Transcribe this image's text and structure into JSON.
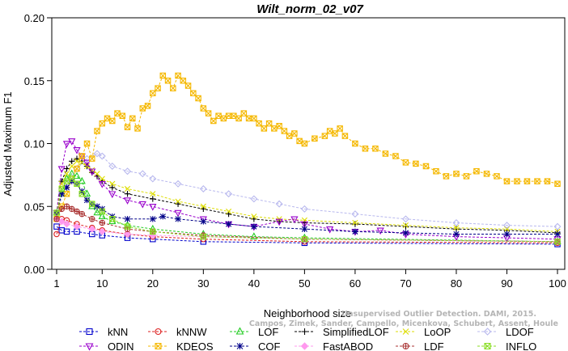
{
  "chart_data": {
    "type": "line",
    "title": "Wilt_norm_02_v07",
    "xlabel": "Neighborhood size",
    "ylabel": "Adjusted Maximum F1",
    "xlim": [
      1,
      100
    ],
    "ylim": [
      0.0,
      0.2
    ],
    "x_ticks": [
      "1",
      "10",
      "20",
      "30",
      "40",
      "50",
      "60",
      "70",
      "80",
      "90",
      "100"
    ],
    "y_ticks": [
      "0.00",
      "0.05",
      "0.10",
      "0.15",
      "0.20"
    ],
    "grid": false,
    "legend_position": "bottom",
    "watermark": [
      "Campos, Zimek, Sander, Campello, Micenkova, Schubert, Assent, Houle",
      "Unsupervised Outlier Detection. DAMI, 2015."
    ],
    "series": [
      {
        "name": "kNN",
        "color": "#0000cc",
        "marker": "square",
        "points": [
          [
            1,
            0.034
          ],
          [
            2,
            0.031
          ],
          [
            3,
            0.03
          ],
          [
            5,
            0.03
          ],
          [
            8,
            0.028
          ],
          [
            10,
            0.027
          ],
          [
            15,
            0.025
          ],
          [
            20,
            0.024
          ],
          [
            30,
            0.022
          ],
          [
            50,
            0.021
          ],
          [
            100,
            0.02
          ]
        ]
      },
      {
        "name": "kNNW",
        "color": "#dd2222",
        "marker": "circle",
        "points": [
          [
            1,
            0.028
          ],
          [
            2,
            0.04
          ],
          [
            3,
            0.039
          ],
          [
            5,
            0.036
          ],
          [
            8,
            0.033
          ],
          [
            10,
            0.031
          ],
          [
            15,
            0.028
          ],
          [
            20,
            0.026
          ],
          [
            30,
            0.024
          ],
          [
            50,
            0.022
          ],
          [
            100,
            0.021
          ]
        ]
      },
      {
        "name": "LOF",
        "color": "#22cc22",
        "marker": "triangle-up",
        "points": [
          [
            1,
            0.045
          ],
          [
            2,
            0.06
          ],
          [
            3,
            0.072
          ],
          [
            4,
            0.076
          ],
          [
            5,
            0.074
          ],
          [
            6,
            0.07
          ],
          [
            7,
            0.06
          ],
          [
            8,
            0.05
          ],
          [
            9,
            0.045
          ],
          [
            10,
            0.042
          ],
          [
            12,
            0.038
          ],
          [
            15,
            0.035
          ],
          [
            20,
            0.032
          ],
          [
            30,
            0.028
          ],
          [
            40,
            0.026
          ],
          [
            50,
            0.025
          ],
          [
            100,
            0.022
          ]
        ]
      },
      {
        "name": "SimplifiedLOF",
        "color": "#000000",
        "marker": "plus",
        "points": [
          [
            1,
            0.045
          ],
          [
            2,
            0.07
          ],
          [
            3,
            0.08
          ],
          [
            4,
            0.086
          ],
          [
            5,
            0.088
          ],
          [
            6,
            0.086
          ],
          [
            7,
            0.082
          ],
          [
            8,
            0.077
          ],
          [
            9,
            0.074
          ],
          [
            10,
            0.07
          ],
          [
            12,
            0.065
          ],
          [
            15,
            0.06
          ],
          [
            20,
            0.056
          ],
          [
            25,
            0.052
          ],
          [
            30,
            0.048
          ],
          [
            35,
            0.044
          ],
          [
            40,
            0.04
          ],
          [
            45,
            0.038
          ],
          [
            50,
            0.037
          ],
          [
            60,
            0.036
          ],
          [
            70,
            0.034
          ],
          [
            80,
            0.032
          ],
          [
            90,
            0.031
          ],
          [
            100,
            0.029
          ]
        ]
      },
      {
        "name": "LoOP",
        "color": "#dddd00",
        "marker": "x",
        "points": [
          [
            1,
            0.045
          ],
          [
            2,
            0.068
          ],
          [
            3,
            0.076
          ],
          [
            4,
            0.082
          ],
          [
            5,
            0.086
          ],
          [
            6,
            0.085
          ],
          [
            7,
            0.082
          ],
          [
            8,
            0.079
          ],
          [
            9,
            0.076
          ],
          [
            10,
            0.072
          ],
          [
            12,
            0.068
          ],
          [
            15,
            0.064
          ],
          [
            20,
            0.06
          ],
          [
            25,
            0.054
          ],
          [
            30,
            0.05
          ],
          [
            35,
            0.046
          ],
          [
            40,
            0.042
          ],
          [
            45,
            0.04
          ],
          [
            50,
            0.039
          ],
          [
            60,
            0.037
          ],
          [
            70,
            0.035
          ],
          [
            80,
            0.033
          ],
          [
            90,
            0.032
          ],
          [
            100,
            0.03
          ]
        ]
      },
      {
        "name": "LDOF",
        "color": "#b8b8ee",
        "marker": "diamond",
        "points": [
          [
            1,
            0.045
          ],
          [
            3,
            0.068
          ],
          [
            5,
            0.08
          ],
          [
            7,
            0.088
          ],
          [
            9,
            0.092
          ],
          [
            10,
            0.09
          ],
          [
            12,
            0.082
          ],
          [
            15,
            0.078
          ],
          [
            18,
            0.076
          ],
          [
            20,
            0.072
          ],
          [
            25,
            0.068
          ],
          [
            30,
            0.064
          ],
          [
            35,
            0.06
          ],
          [
            40,
            0.056
          ],
          [
            45,
            0.052
          ],
          [
            50,
            0.048
          ],
          [
            60,
            0.044
          ],
          [
            70,
            0.04
          ],
          [
            80,
            0.037
          ],
          [
            90,
            0.035
          ],
          [
            100,
            0.034
          ]
        ]
      },
      {
        "name": "ODIN",
        "color": "#9900cc",
        "marker": "triangle-down",
        "points": [
          [
            1,
            0.045
          ],
          [
            2,
            0.08
          ],
          [
            3,
            0.1
          ],
          [
            4,
            0.102
          ],
          [
            5,
            0.095
          ],
          [
            6,
            0.09
          ],
          [
            7,
            0.085
          ],
          [
            8,
            0.078
          ],
          [
            10,
            0.068
          ],
          [
            12,
            0.06
          ],
          [
            15,
            0.055
          ],
          [
            18,
            0.052
          ],
          [
            20,
            0.05
          ],
          [
            25,
            0.045
          ],
          [
            30,
            0.04
          ],
          [
            35,
            0.036
          ],
          [
            40,
            0.034
          ],
          [
            45,
            0.038
          ],
          [
            48,
            0.04
          ],
          [
            50,
            0.036
          ],
          [
            55,
            0.032
          ],
          [
            60,
            0.03
          ],
          [
            65,
            0.031
          ],
          [
            70,
            0.028
          ],
          [
            80,
            0.026
          ],
          [
            90,
            0.025
          ],
          [
            100,
            0.024
          ]
        ]
      },
      {
        "name": "KDEOS",
        "color": "#f5b800",
        "marker": "square-x",
        "points": [
          [
            1,
            0.04
          ],
          [
            2,
            0.05
          ],
          [
            3,
            0.06
          ],
          [
            4,
            0.072
          ],
          [
            5,
            0.08
          ],
          [
            6,
            0.09
          ],
          [
            7,
            0.1
          ],
          [
            8,
            0.088
          ],
          [
            9,
            0.11
          ],
          [
            10,
            0.116
          ],
          [
            11,
            0.12
          ],
          [
            12,
            0.118
          ],
          [
            13,
            0.124
          ],
          [
            14,
            0.122
          ],
          [
            15,
            0.113
          ],
          [
            16,
            0.12
          ],
          [
            17,
            0.112
          ],
          [
            18,
            0.128
          ],
          [
            19,
            0.13
          ],
          [
            20,
            0.14
          ],
          [
            21,
            0.144
          ],
          [
            22,
            0.154
          ],
          [
            23,
            0.15
          ],
          [
            24,
            0.144
          ],
          [
            25,
            0.154
          ],
          [
            26,
            0.15
          ],
          [
            27,
            0.146
          ],
          [
            28,
            0.14
          ],
          [
            29,
            0.136
          ],
          [
            30,
            0.128
          ],
          [
            31,
            0.124
          ],
          [
            32,
            0.118
          ],
          [
            33,
            0.122
          ],
          [
            34,
            0.12
          ],
          [
            35,
            0.122
          ],
          [
            36,
            0.122
          ],
          [
            37,
            0.12
          ],
          [
            38,
            0.124
          ],
          [
            39,
            0.12
          ],
          [
            40,
            0.12
          ],
          [
            41,
            0.116
          ],
          [
            42,
            0.112
          ],
          [
            43,
            0.116
          ],
          [
            44,
            0.112
          ],
          [
            45,
            0.114
          ],
          [
            46,
            0.11
          ],
          [
            47,
            0.106
          ],
          [
            48,
            0.108
          ],
          [
            49,
            0.102
          ],
          [
            50,
            0.1
          ],
          [
            52,
            0.104
          ],
          [
            54,
            0.106
          ],
          [
            55,
            0.11
          ],
          [
            56,
            0.108
          ],
          [
            57,
            0.112
          ],
          [
            58,
            0.106
          ],
          [
            60,
            0.1
          ],
          [
            62,
            0.096
          ],
          [
            64,
            0.096
          ],
          [
            66,
            0.092
          ],
          [
            68,
            0.09
          ],
          [
            70,
            0.085
          ],
          [
            72,
            0.084
          ],
          [
            74,
            0.082
          ],
          [
            76,
            0.078
          ],
          [
            78,
            0.074
          ],
          [
            80,
            0.076
          ],
          [
            82,
            0.074
          ],
          [
            84,
            0.078
          ],
          [
            86,
            0.076
          ],
          [
            88,
            0.074
          ],
          [
            90,
            0.07
          ],
          [
            92,
            0.07
          ],
          [
            94,
            0.07
          ],
          [
            96,
            0.07
          ],
          [
            98,
            0.07
          ],
          [
            100,
            0.068
          ]
        ]
      },
      {
        "name": "COF",
        "color": "#000088",
        "marker": "star",
        "points": [
          [
            1,
            0.045
          ],
          [
            2,
            0.06
          ],
          [
            3,
            0.065
          ],
          [
            4,
            0.07
          ],
          [
            5,
            0.068
          ],
          [
            6,
            0.062
          ],
          [
            7,
            0.055
          ],
          [
            8,
            0.052
          ],
          [
            9,
            0.05
          ],
          [
            10,
            0.048
          ],
          [
            12,
            0.042
          ],
          [
            15,
            0.04
          ],
          [
            20,
            0.04
          ],
          [
            22,
            0.042
          ],
          [
            25,
            0.04
          ],
          [
            30,
            0.038
          ],
          [
            35,
            0.036
          ],
          [
            40,
            0.034
          ],
          [
            50,
            0.032
          ],
          [
            60,
            0.03
          ],
          [
            70,
            0.029
          ],
          [
            80,
            0.028
          ],
          [
            90,
            0.028
          ],
          [
            100,
            0.028
          ]
        ]
      },
      {
        "name": "FastABOD",
        "color": "#ff99ee",
        "marker": "diamond-filled",
        "points": [
          [
            1,
            0.04
          ],
          [
            2,
            0.038
          ],
          [
            3,
            0.036
          ],
          [
            5,
            0.034
          ],
          [
            8,
            0.032
          ],
          [
            10,
            0.03
          ],
          [
            15,
            0.028
          ],
          [
            20,
            0.027
          ],
          [
            30,
            0.026
          ],
          [
            50,
            0.024
          ],
          [
            100,
            0.022
          ]
        ]
      },
      {
        "name": "LDF",
        "color": "#aa3333",
        "marker": "circle-plus",
        "points": [
          [
            1,
            0.04
          ],
          [
            2,
            0.048
          ],
          [
            3,
            0.05
          ],
          [
            4,
            0.048
          ],
          [
            5,
            0.046
          ],
          [
            6,
            0.044
          ],
          [
            8,
            0.04
          ],
          [
            10,
            0.037
          ],
          [
            15,
            0.032
          ],
          [
            20,
            0.03
          ],
          [
            30,
            0.027
          ],
          [
            50,
            0.024
          ],
          [
            100,
            0.022
          ]
        ]
      },
      {
        "name": "INFLO",
        "color": "#88dd22",
        "marker": "square-x",
        "points": [
          [
            1,
            0.045
          ],
          [
            2,
            0.064
          ],
          [
            3,
            0.07
          ],
          [
            4,
            0.072
          ],
          [
            5,
            0.068
          ],
          [
            6,
            0.06
          ],
          [
            8,
            0.052
          ],
          [
            10,
            0.046
          ],
          [
            12,
            0.04
          ],
          [
            15,
            0.034
          ],
          [
            20,
            0.03
          ],
          [
            30,
            0.026
          ],
          [
            50,
            0.024
          ],
          [
            100,
            0.022
          ]
        ]
      }
    ]
  }
}
